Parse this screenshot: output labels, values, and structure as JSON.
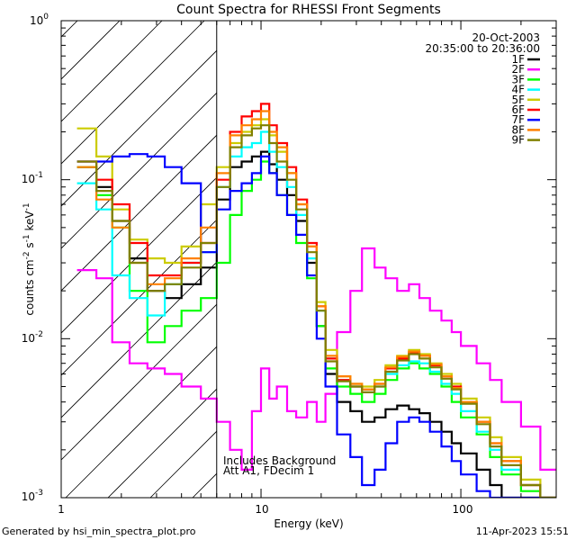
{
  "chart_data": {
    "type": "line",
    "title": "Count Spectra for RHESSI Front Segments",
    "xlabel": "Energy (keV)",
    "ylabel_main": "counts cm",
    "ylabel_sup1": "-2",
    "ylabel_mid": " s",
    "ylabel_sup2": "-1",
    "ylabel_end": " keV",
    "ylabel_sup3": "-1",
    "xscale": "log",
    "yscale": "log",
    "xlim": [
      1,
      300
    ],
    "ylim": [
      0.001,
      1
    ],
    "x_ticks": [
      {
        "value": 1,
        "label": "1"
      },
      {
        "value": 10,
        "label": "10"
      },
      {
        "value": 100,
        "label": "100"
      }
    ],
    "y_ticks": [
      {
        "value": 1,
        "base": "10",
        "exp": "0"
      },
      {
        "value": 0.1,
        "base": "10",
        "exp": "-1"
      },
      {
        "value": 0.01,
        "base": "10",
        "exp": "-2"
      },
      {
        "value": 0.001,
        "base": "10",
        "exp": "-3"
      }
    ],
    "date": "20-Oct-2003",
    "time_range": "20:35:00 to 20:36:00",
    "hatched_region_max_keV": 6,
    "annotations": [
      "Includes Background",
      "Att A1, FDecim 1"
    ],
    "series": [
      {
        "name": "1F",
        "color": "#000000",
        "x": [
          1.2,
          1.5,
          1.8,
          2.2,
          2.7,
          3.3,
          4.0,
          5.0,
          6.0,
          7.0,
          8.0,
          9.0,
          10.0,
          11.0,
          12.0,
          13.5,
          15.0,
          17.0,
          19.0,
          21.0,
          24.0,
          28.0,
          32.0,
          37.0,
          42.0,
          48.0,
          55.0,
          62.0,
          70.0,
          80.0,
          90.0,
          100.0,
          120.0,
          140.0,
          160.0,
          200.0,
          250.0
        ],
        "values": [
          0.12,
          0.09,
          0.055,
          0.032,
          0.02,
          0.018,
          0.022,
          0.028,
          0.075,
          0.12,
          0.13,
          0.14,
          0.15,
          0.125,
          0.1,
          0.08,
          0.055,
          0.03,
          0.012,
          0.006,
          0.004,
          0.0035,
          0.003,
          0.0032,
          0.0036,
          0.0038,
          0.0036,
          0.0034,
          0.003,
          0.0026,
          0.0022,
          0.0019,
          0.0015,
          0.0012,
          0.001,
          0.001,
          0.001
        ]
      },
      {
        "name": "2F",
        "color": "#ff00ff",
        "x": [
          1.2,
          1.5,
          1.8,
          2.2,
          2.7,
          3.3,
          4.0,
          5.0,
          6.0,
          7.0,
          8.0,
          9.0,
          10.0,
          11.0,
          12.0,
          13.5,
          15.0,
          17.0,
          19.0,
          21.0,
          24.0,
          28.0,
          32.0,
          37.0,
          42.0,
          48.0,
          55.0,
          62.0,
          70.0,
          80.0,
          90.0,
          100.0,
          120.0,
          140.0,
          160.0,
          200.0,
          250.0
        ],
        "values": [
          0.027,
          0.024,
          0.0095,
          0.007,
          0.0065,
          0.006,
          0.005,
          0.0042,
          0.003,
          0.002,
          0.0015,
          0.0035,
          0.0065,
          0.0042,
          0.005,
          0.0035,
          0.0032,
          0.004,
          0.003,
          0.0045,
          0.011,
          0.02,
          0.037,
          0.028,
          0.024,
          0.02,
          0.022,
          0.018,
          0.015,
          0.013,
          0.011,
          0.009,
          0.007,
          0.0055,
          0.004,
          0.0028,
          0.0015
        ]
      },
      {
        "name": "3F",
        "color": "#00ff00",
        "x": [
          1.2,
          1.5,
          1.8,
          2.2,
          2.7,
          3.3,
          4.0,
          5.0,
          6.0,
          7.0,
          8.0,
          9.0,
          10.0,
          11.0,
          12.0,
          13.5,
          15.0,
          17.0,
          19.0,
          21.0,
          24.0,
          28.0,
          32.0,
          37.0,
          42.0,
          48.0,
          55.0,
          62.0,
          70.0,
          80.0,
          90.0,
          100.0,
          120.0,
          140.0,
          160.0,
          200.0,
          250.0
        ],
        "values": [
          0.12,
          0.08,
          0.05,
          0.02,
          0.0095,
          0.012,
          0.015,
          0.018,
          0.03,
          0.06,
          0.085,
          0.1,
          0.13,
          0.11,
          0.08,
          0.06,
          0.04,
          0.024,
          0.012,
          0.0065,
          0.005,
          0.0045,
          0.004,
          0.0045,
          0.0055,
          0.0065,
          0.007,
          0.0065,
          0.006,
          0.005,
          0.004,
          0.0032,
          0.0025,
          0.0018,
          0.0014,
          0.0011,
          0.001
        ]
      },
      {
        "name": "4F",
        "color": "#00ffff",
        "x": [
          1.2,
          1.5,
          1.8,
          2.2,
          2.7,
          3.3,
          4.0,
          5.0,
          6.0,
          7.0,
          8.0,
          9.0,
          10.0,
          11.0,
          12.0,
          13.5,
          15.0,
          17.0,
          19.0,
          21.0,
          24.0,
          28.0,
          32.0,
          37.0,
          42.0,
          48.0,
          55.0,
          62.0,
          70.0,
          80.0,
          90.0,
          100.0,
          120.0,
          140.0,
          160.0,
          200.0,
          250.0
        ],
        "values": [
          0.095,
          0.065,
          0.025,
          0.018,
          0.014,
          0.022,
          0.03,
          0.035,
          0.09,
          0.14,
          0.16,
          0.17,
          0.2,
          0.15,
          0.12,
          0.09,
          0.06,
          0.032,
          0.015,
          0.0075,
          0.0055,
          0.005,
          0.0048,
          0.005,
          0.006,
          0.0068,
          0.0072,
          0.007,
          0.0062,
          0.0052,
          0.0045,
          0.0035,
          0.0026,
          0.002,
          0.0015,
          0.0012,
          0.001
        ]
      },
      {
        "name": "5F",
        "color": "#cccc00",
        "x": [
          1.2,
          1.5,
          1.8,
          2.2,
          2.7,
          3.3,
          4.0,
          5.0,
          6.0,
          7.0,
          8.0,
          9.0,
          10.0,
          11.0,
          12.0,
          13.5,
          15.0,
          17.0,
          19.0,
          21.0,
          24.0,
          28.0,
          32.0,
          37.0,
          42.0,
          48.0,
          55.0,
          62.0,
          70.0,
          80.0,
          90.0,
          100.0,
          120.0,
          140.0,
          160.0,
          200.0,
          250.0
        ],
        "values": [
          0.21,
          0.14,
          0.065,
          0.042,
          0.032,
          0.03,
          0.038,
          0.07,
          0.12,
          0.17,
          0.2,
          0.22,
          0.24,
          0.19,
          0.15,
          0.11,
          0.07,
          0.038,
          0.017,
          0.0085,
          0.0058,
          0.0052,
          0.005,
          0.0055,
          0.0068,
          0.0078,
          0.0085,
          0.008,
          0.007,
          0.006,
          0.0052,
          0.0042,
          0.0032,
          0.0024,
          0.0018,
          0.0013,
          0.001
        ]
      },
      {
        "name": "6F",
        "color": "#ff0000",
        "x": [
          1.2,
          1.5,
          1.8,
          2.2,
          2.7,
          3.3,
          4.0,
          5.0,
          6.0,
          7.0,
          8.0,
          9.0,
          10.0,
          11.0,
          12.0,
          13.5,
          15.0,
          17.0,
          19.0,
          21.0,
          24.0,
          28.0,
          32.0,
          37.0,
          42.0,
          48.0,
          55.0,
          62.0,
          70.0,
          80.0,
          90.0,
          100.0,
          120.0,
          140.0,
          160.0,
          200.0,
          250.0
        ],
        "values": [
          0.13,
          0.1,
          0.07,
          0.04,
          0.025,
          0.025,
          0.03,
          0.04,
          0.1,
          0.2,
          0.25,
          0.27,
          0.3,
          0.22,
          0.17,
          0.12,
          0.075,
          0.04,
          0.016,
          0.0075,
          0.0055,
          0.005,
          0.0048,
          0.0052,
          0.0065,
          0.0075,
          0.0082,
          0.0078,
          0.0068,
          0.0058,
          0.005,
          0.004,
          0.003,
          0.0022,
          0.0017,
          0.0012,
          0.001
        ]
      },
      {
        "name": "7F",
        "color": "#0000ff",
        "x": [
          1.2,
          1.5,
          1.8,
          2.2,
          2.7,
          3.3,
          4.0,
          5.0,
          6.0,
          7.0,
          8.0,
          9.0,
          10.0,
          11.0,
          12.0,
          13.5,
          15.0,
          17.0,
          19.0,
          21.0,
          24.0,
          28.0,
          32.0,
          37.0,
          42.0,
          48.0,
          55.0,
          62.0,
          70.0,
          80.0,
          90.0,
          100.0,
          120.0,
          140.0,
          160.0,
          200.0,
          250.0
        ],
        "values": [
          0.13,
          0.13,
          0.14,
          0.145,
          0.14,
          0.12,
          0.095,
          0.035,
          0.065,
          0.085,
          0.095,
          0.11,
          0.14,
          0.11,
          0.08,
          0.06,
          0.045,
          0.025,
          0.01,
          0.005,
          0.0025,
          0.0018,
          0.0012,
          0.0015,
          0.0022,
          0.003,
          0.0032,
          0.003,
          0.0026,
          0.0021,
          0.0017,
          0.0014,
          0.0011,
          0.001,
          0.001,
          0.001,
          0.001
        ]
      },
      {
        "name": "8F",
        "color": "#ff8000",
        "x": [
          1.2,
          1.5,
          1.8,
          2.2,
          2.7,
          3.3,
          4.0,
          5.0,
          6.0,
          7.0,
          8.0,
          9.0,
          10.0,
          11.0,
          12.0,
          13.5,
          15.0,
          17.0,
          19.0,
          21.0,
          24.0,
          28.0,
          32.0,
          37.0,
          42.0,
          48.0,
          55.0,
          62.0,
          70.0,
          80.0,
          90.0,
          100.0,
          120.0,
          140.0,
          160.0,
          200.0,
          250.0
        ],
        "values": [
          0.12,
          0.075,
          0.05,
          0.03,
          0.022,
          0.024,
          0.032,
          0.05,
          0.11,
          0.19,
          0.22,
          0.24,
          0.27,
          0.2,
          0.16,
          0.11,
          0.07,
          0.038,
          0.016,
          0.0078,
          0.0058,
          0.0052,
          0.0048,
          0.0052,
          0.0066,
          0.0077,
          0.0083,
          0.0078,
          0.0069,
          0.0058,
          0.0049,
          0.004,
          0.003,
          0.0022,
          0.0017,
          0.0012,
          0.001
        ]
      },
      {
        "name": "9F",
        "color": "#808000",
        "x": [
          1.2,
          1.5,
          1.8,
          2.2,
          2.7,
          3.3,
          4.0,
          5.0,
          6.0,
          7.0,
          8.0,
          9.0,
          10.0,
          11.0,
          12.0,
          13.5,
          15.0,
          17.0,
          19.0,
          21.0,
          24.0,
          28.0,
          32.0,
          37.0,
          42.0,
          48.0,
          55.0,
          62.0,
          70.0,
          80.0,
          90.0,
          100.0,
          120.0,
          140.0,
          160.0,
          200.0,
          250.0
        ],
        "values": [
          0.13,
          0.085,
          0.055,
          0.03,
          0.02,
          0.022,
          0.028,
          0.04,
          0.09,
          0.16,
          0.19,
          0.21,
          0.22,
          0.17,
          0.13,
          0.1,
          0.065,
          0.035,
          0.015,
          0.0072,
          0.0054,
          0.005,
          0.0046,
          0.005,
          0.0062,
          0.0073,
          0.008,
          0.0075,
          0.0066,
          0.0056,
          0.0048,
          0.0039,
          0.0029,
          0.0021,
          0.0016,
          0.0012,
          0.001
        ]
      }
    ]
  },
  "footer": {
    "left": "Generated by hsi_min_spectra_plot.pro",
    "right": "11-Apr-2023 15:51"
  }
}
